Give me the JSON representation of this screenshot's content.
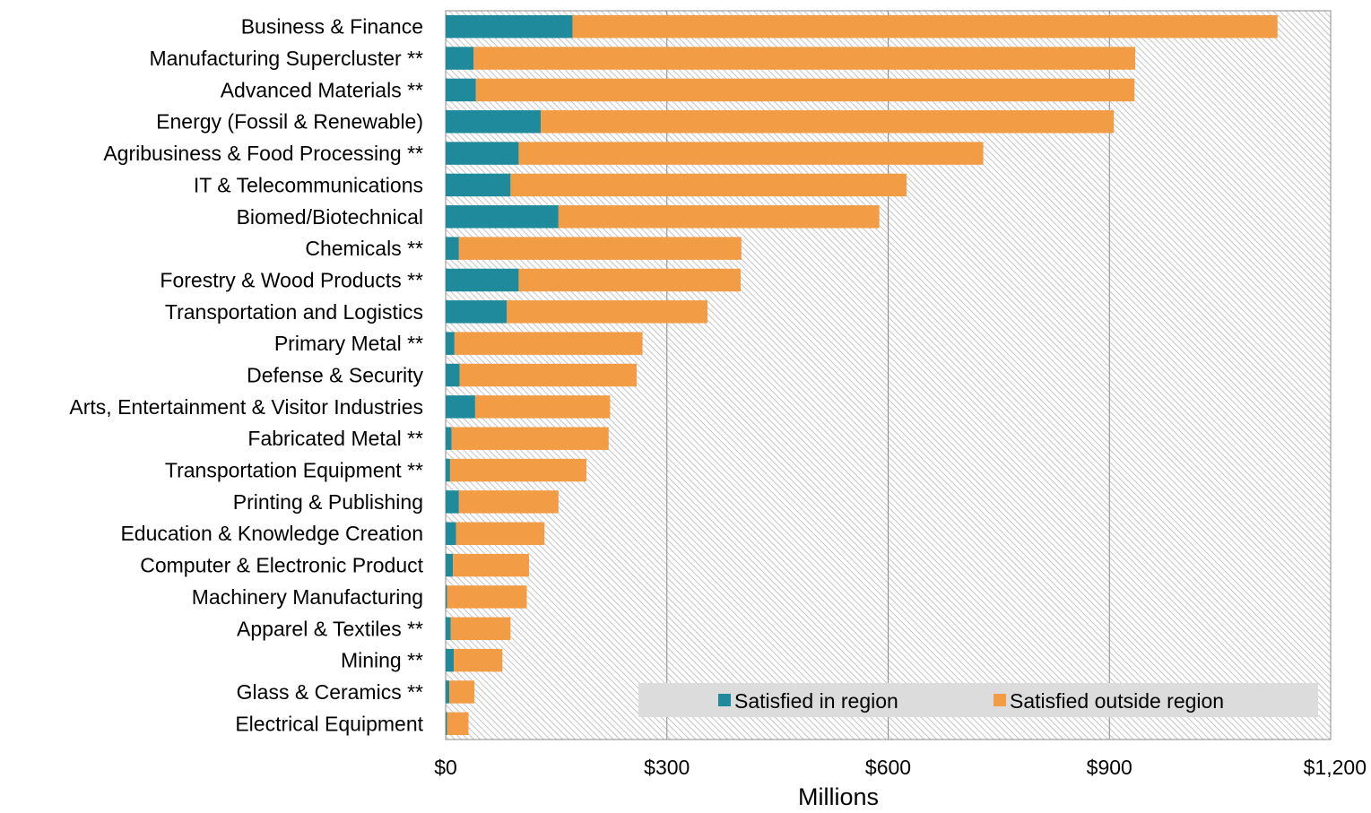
{
  "chart_data": {
    "type": "bar",
    "orientation": "horizontal",
    "stacked": true,
    "xlabel": "Millions",
    "xlim": [
      0,
      1200
    ],
    "xticks": [
      0,
      300,
      600,
      900,
      1200
    ],
    "xtick_labels": [
      "$0",
      "$300",
      "$600",
      "$900",
      "$1,200"
    ],
    "grid": true,
    "legend_position": "bottom-right",
    "categories": [
      "Business & Finance",
      "Manufacturing Supercluster **",
      "Advanced Materials **",
      "Energy (Fossil & Renewable)",
      "Agribusiness & Food Processing **",
      "IT & Telecommunications",
      "Biomed/Biotechnical",
      "Chemicals **",
      "Forestry & Wood Products **",
      "Transportation and Logistics",
      "Primary Metal **",
      "Defense & Security",
      "Arts, Entertainment & Visitor Industries",
      "Fabricated Metal **",
      "Transportation Equipment **",
      "Printing & Publishing",
      "Education & Knowledge Creation",
      "Computer & Electronic Product",
      "Machinery Manufacturing",
      "Apparel & Textiles **",
      "Mining **",
      "Glass & Ceramics **",
      "Electrical Equipment"
    ],
    "series": [
      {
        "name": "Satisfied in region",
        "color": "#1f8a9c",
        "values": [
          172,
          38,
          41,
          129,
          99,
          88,
          153,
          18,
          99,
          83,
          12,
          19,
          40,
          8,
          6,
          18,
          14,
          10,
          2,
          7,
          11,
          5,
          2
        ]
      },
      {
        "name": "Satisfied outside region",
        "color": "#f29c45",
        "values": [
          956,
          897,
          893,
          777,
          630,
          537,
          435,
          383,
          301,
          272,
          255,
          240,
          183,
          213,
          185,
          135,
          120,
          103,
          108,
          81,
          66,
          34,
          29
        ]
      }
    ]
  }
}
